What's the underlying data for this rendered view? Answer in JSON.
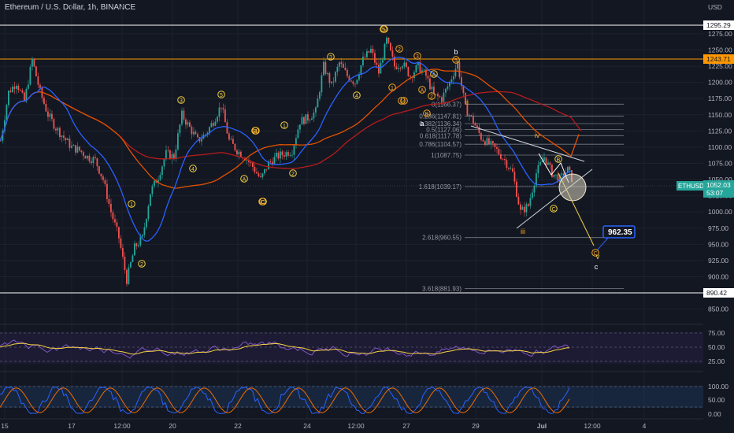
{
  "header": {
    "title": "Ethereum / U.S. Dollar, 1h, BINANCE"
  },
  "price_axis": {
    "currency": "USD",
    "ticks": [
      1275,
      1250,
      1225,
      1200,
      1175,
      1150,
      1125,
      1100,
      1075,
      1050,
      1025,
      1000,
      975,
      950,
      925,
      900,
      875,
      850
    ]
  },
  "rsi_axis": {
    "ticks": [
      "75.00",
      "50.00",
      "25.00"
    ]
  },
  "stoch_axis": {
    "ticks": [
      "100.00",
      "50.00",
      "0.00"
    ]
  },
  "time_axis": {
    "labels": [
      "15",
      "17",
      "12:00",
      "20",
      "22",
      "24",
      "12:00",
      "27",
      "29",
      "Jul",
      "12:00",
      "4"
    ]
  },
  "price_tags": {
    "top": "1295.29",
    "orange": "1243.71",
    "bottom": "890.42",
    "symbol": "ETHUSD",
    "last": "1052.03",
    "countdown": "53:07",
    "target": "962.35"
  },
  "fib_labels": [
    {
      "text": "0(1166.37)",
      "value": 1166.37
    },
    {
      "text": "0.236(1147.81)",
      "value": 1147.81
    },
    {
      "text": "0.382(1136.34)",
      "value": 1136.34
    },
    {
      "text": "0.5(1127.06)",
      "value": 1127.06
    },
    {
      "text": "0.618(1117.78)",
      "value": 1117.78
    },
    {
      "text": "0.786(1104.57)",
      "value": 1104.57
    },
    {
      "text": "1(1087.75)",
      "value": 1087.75
    },
    {
      "text": "1.618(1039.17)",
      "value": 1039.17
    },
    {
      "text": "2.618(960.55)",
      "value": 960.55
    },
    {
      "text": "3.618(881.93)",
      "value": 881.93
    }
  ],
  "wave_labels": {
    "yellow_circles": [
      "1",
      "2",
      "3",
      "4",
      "5",
      "A",
      "B",
      "C",
      "1",
      "2",
      "3",
      "4",
      "5",
      "A",
      "B",
      "C"
    ],
    "orange_circles": [
      "5",
      "B",
      "A",
      "C",
      "4",
      "1",
      "2",
      "3",
      "2",
      "4",
      "1",
      "5",
      "C"
    ],
    "plain": [
      "b",
      "a",
      "ii",
      "iii",
      "iv",
      "v",
      "c"
    ]
  },
  "colors": {
    "background": "#131722",
    "up": "#26a69a",
    "down": "#ef5350",
    "blue_ma": "#2962ff",
    "orange_ma": "#f57c00",
    "red_ma": "#c62828",
    "orange_line": "#ff9800",
    "yellow_label": "#f5d142",
    "orange_label": "#f5a623",
    "target_box": "#2962ff"
  },
  "chart_data": {
    "type": "candlestick",
    "title": "Ethereum / U.S. Dollar, 1h, BINANCE",
    "ylim": [
      835,
      1315
    ],
    "horizontal_levels": [
      1295.29,
      1243.71,
      890.42
    ],
    "last_price": 1052.03,
    "target_price": 962.35,
    "price_path": [
      [
        0,
        1110
      ],
      [
        10,
        1185
      ],
      [
        20,
        1200
      ],
      [
        30,
        1170
      ],
      [
        40,
        1235
      ],
      [
        50,
        1185
      ],
      [
        60,
        1150
      ],
      [
        70,
        1130
      ],
      [
        80,
        1115
      ],
      [
        90,
        1100
      ],
      [
        100,
        1095
      ],
      [
        110,
        1085
      ],
      [
        120,
        1080
      ],
      [
        130,
        1050
      ],
      [
        140,
        1000
      ],
      [
        150,
        960
      ],
      [
        160,
        895
      ],
      [
        170,
        945
      ],
      [
        180,
        960
      ],
      [
        190,
        1030
      ],
      [
        200,
        1055
      ],
      [
        210,
        1090
      ],
      [
        220,
        1085
      ],
      [
        230,
        1150
      ],
      [
        240,
        1130
      ],
      [
        250,
        1110
      ],
      [
        260,
        1120
      ],
      [
        270,
        1140
      ],
      [
        280,
        1165
      ],
      [
        290,
        1110
      ],
      [
        300,
        1095
      ],
      [
        310,
        1085
      ],
      [
        320,
        1070
      ],
      [
        330,
        1050
      ],
      [
        340,
        1075
      ],
      [
        350,
        1085
      ],
      [
        360,
        1090
      ],
      [
        370,
        1095
      ],
      [
        380,
        1140
      ],
      [
        390,
        1145
      ],
      [
        400,
        1155
      ],
      [
        410,
        1225
      ],
      [
        420,
        1195
      ],
      [
        430,
        1230
      ],
      [
        440,
        1210
      ],
      [
        450,
        1200
      ],
      [
        460,
        1235
      ],
      [
        470,
        1250
      ],
      [
        480,
        1215
      ],
      [
        490,
        1265
      ],
      [
        500,
        1225
      ],
      [
        510,
        1230
      ],
      [
        520,
        1210
      ],
      [
        530,
        1225
      ],
      [
        540,
        1210
      ],
      [
        550,
        1180
      ],
      [
        560,
        1175
      ],
      [
        570,
        1200
      ],
      [
        580,
        1230
      ],
      [
        590,
        1160
      ],
      [
        600,
        1140
      ],
      [
        610,
        1115
      ],
      [
        620,
        1105
      ],
      [
        630,
        1095
      ],
      [
        640,
        1080
      ],
      [
        650,
        1060
      ],
      [
        660,
        1000
      ],
      [
        670,
        1010
      ],
      [
        680,
        1060
      ],
      [
        690,
        1085
      ],
      [
        700,
        1060
      ],
      [
        710,
        1050
      ],
      [
        720,
        1065
      ],
      [
        725,
        1052
      ]
    ],
    "rsi_ticks": [
      75,
      50,
      25
    ],
    "stoch_ticks": [
      100,
      50,
      0
    ]
  }
}
